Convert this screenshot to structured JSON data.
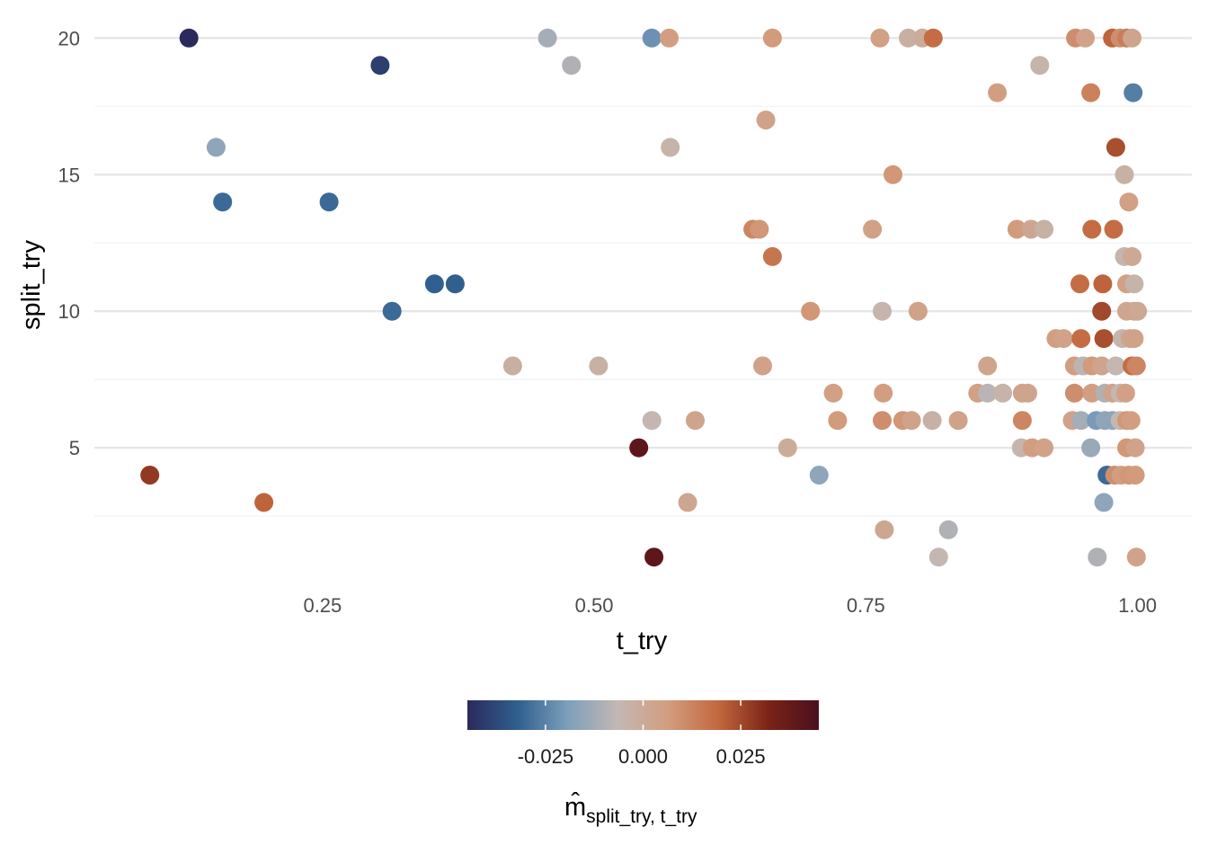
{
  "chart_data": {
    "type": "scatter",
    "xlabel": "t_try",
    "ylabel": "split_try",
    "xlim": [
      0.04,
      1.05
    ],
    "ylim": [
      0.1,
      20.9
    ],
    "x_ticks": [
      0.25,
      0.5,
      0.75,
      1.0
    ],
    "x_tick_labels": [
      "0.25",
      "0.50",
      "0.75",
      "1.00"
    ],
    "y_ticks": [
      5,
      10,
      15,
      20
    ],
    "y_tick_labels": [
      "5",
      "10",
      "15",
      "20"
    ],
    "grid": true,
    "legend": {
      "position": "bottom",
      "title": "m̂",
      "title_subscript": "split_try, t_try",
      "range": [
        -0.045,
        0.045
      ],
      "ticks": [
        -0.025,
        0.0,
        0.025
      ],
      "tick_labels": [
        "-0.025",
        "0.000",
        "0.025"
      ],
      "colors": [
        "#2b2a5c",
        "#2f5f8e",
        "#7d9fbb",
        "#c3b8b3",
        "#d39d7f",
        "#c2683e",
        "#7a2316",
        "#4a0f1f"
      ]
    },
    "points": [
      {
        "x": 0.127,
        "y": 20,
        "v": -0.045
      },
      {
        "x": 0.303,
        "y": 19,
        "v": -0.04
      },
      {
        "x": 0.457,
        "y": 20,
        "v": -0.012
      },
      {
        "x": 0.479,
        "y": 19,
        "v": -0.01
      },
      {
        "x": 0.553,
        "y": 20,
        "v": -0.022
      },
      {
        "x": 0.569,
        "y": 20,
        "v": 0.006
      },
      {
        "x": 0.664,
        "y": 20,
        "v": 0.007
      },
      {
        "x": 0.763,
        "y": 20,
        "v": 0.005
      },
      {
        "x": 0.789,
        "y": 20,
        "v": -0.002
      },
      {
        "x": 0.802,
        "y": 20,
        "v": 0.0
      },
      {
        "x": 0.812,
        "y": 20,
        "v": 0.018
      },
      {
        "x": 0.943,
        "y": 20,
        "v": 0.01
      },
      {
        "x": 0.952,
        "y": 20,
        "v": 0.004
      },
      {
        "x": 0.977,
        "y": 20,
        "v": 0.02
      },
      {
        "x": 0.984,
        "y": 20,
        "v": 0.01
      },
      {
        "x": 0.99,
        "y": 20,
        "v": 0.014
      },
      {
        "x": 0.995,
        "y": 20,
        "v": 0.003
      },
      {
        "x": 0.91,
        "y": 19,
        "v": -0.004
      },
      {
        "x": 0.871,
        "y": 18,
        "v": 0.006
      },
      {
        "x": 0.957,
        "y": 18,
        "v": 0.013
      },
      {
        "x": 0.996,
        "y": 18,
        "v": -0.026
      },
      {
        "x": 0.658,
        "y": 17,
        "v": 0.004
      },
      {
        "x": 0.152,
        "y": 16,
        "v": -0.016
      },
      {
        "x": 0.57,
        "y": 16,
        "v": -0.004
      },
      {
        "x": 0.98,
        "y": 16,
        "v": 0.024
      },
      {
        "x": 0.775,
        "y": 15,
        "v": 0.008
      },
      {
        "x": 0.988,
        "y": 15,
        "v": -0.003
      },
      {
        "x": 0.158,
        "y": 14,
        "v": -0.03
      },
      {
        "x": 0.256,
        "y": 14,
        "v": -0.03
      },
      {
        "x": 0.992,
        "y": 14,
        "v": 0.005
      },
      {
        "x": 0.646,
        "y": 13,
        "v": 0.012
      },
      {
        "x": 0.652,
        "y": 13,
        "v": 0.008
      },
      {
        "x": 0.756,
        "y": 13,
        "v": 0.005
      },
      {
        "x": 0.889,
        "y": 13,
        "v": 0.007
      },
      {
        "x": 0.902,
        "y": 13,
        "v": 0.002
      },
      {
        "x": 0.914,
        "y": 13,
        "v": -0.003
      },
      {
        "x": 0.958,
        "y": 13,
        "v": 0.018
      },
      {
        "x": 0.978,
        "y": 13,
        "v": 0.018
      },
      {
        "x": 0.664,
        "y": 12,
        "v": 0.016
      },
      {
        "x": 0.988,
        "y": 12,
        "v": -0.005
      },
      {
        "x": 0.995,
        "y": 12,
        "v": 0.001
      },
      {
        "x": 0.353,
        "y": 11,
        "v": -0.032
      },
      {
        "x": 0.372,
        "y": 11,
        "v": -0.032
      },
      {
        "x": 0.947,
        "y": 11,
        "v": 0.018
      },
      {
        "x": 0.968,
        "y": 11,
        "v": 0.02
      },
      {
        "x": 0.99,
        "y": 11,
        "v": 0.005
      },
      {
        "x": 0.997,
        "y": 11,
        "v": -0.004
      },
      {
        "x": 0.314,
        "y": 10,
        "v": -0.03
      },
      {
        "x": 0.699,
        "y": 10,
        "v": 0.008
      },
      {
        "x": 0.765,
        "y": 10,
        "v": -0.005
      },
      {
        "x": 0.798,
        "y": 10,
        "v": 0.004
      },
      {
        "x": 0.967,
        "y": 10,
        "v": 0.025
      },
      {
        "x": 0.99,
        "y": 10,
        "v": 0.002
      },
      {
        "x": 0.997,
        "y": 10,
        "v": 0.003
      },
      {
        "x": 1.0,
        "y": 10,
        "v": 0.001
      },
      {
        "x": 0.925,
        "y": 9,
        "v": 0.006
      },
      {
        "x": 0.932,
        "y": 9,
        "v": 0.004
      },
      {
        "x": 0.948,
        "y": 9,
        "v": 0.018
      },
      {
        "x": 0.969,
        "y": 9,
        "v": 0.024
      },
      {
        "x": 0.986,
        "y": 9,
        "v": -0.005
      },
      {
        "x": 0.993,
        "y": 9,
        "v": 0.002
      },
      {
        "x": 0.997,
        "y": 9,
        "v": 0.004
      },
      {
        "x": 0.425,
        "y": 8,
        "v": -0.002
      },
      {
        "x": 0.504,
        "y": 8,
        "v": -0.003
      },
      {
        "x": 0.655,
        "y": 8,
        "v": 0.004
      },
      {
        "x": 0.862,
        "y": 8,
        "v": 0.003
      },
      {
        "x": 0.942,
        "y": 8,
        "v": 0.006
      },
      {
        "x": 0.95,
        "y": 8,
        "v": -0.008
      },
      {
        "x": 0.958,
        "y": 8,
        "v": 0.007
      },
      {
        "x": 0.967,
        "y": 8,
        "v": 0.003
      },
      {
        "x": 0.98,
        "y": 8,
        "v": -0.006
      },
      {
        "x": 0.995,
        "y": 8,
        "v": 0.018
      },
      {
        "x": 0.999,
        "y": 8,
        "v": 0.012
      },
      {
        "x": 0.72,
        "y": 7,
        "v": 0.005
      },
      {
        "x": 0.766,
        "y": 7,
        "v": 0.006
      },
      {
        "x": 0.853,
        "y": 7,
        "v": 0.005
      },
      {
        "x": 0.862,
        "y": 7,
        "v": -0.008
      },
      {
        "x": 0.876,
        "y": 7,
        "v": -0.004
      },
      {
        "x": 0.894,
        "y": 7,
        "v": 0.004
      },
      {
        "x": 0.899,
        "y": 7,
        "v": 0.003
      },
      {
        "x": 0.942,
        "y": 7,
        "v": 0.01
      },
      {
        "x": 0.958,
        "y": 7,
        "v": 0.006
      },
      {
        "x": 0.97,
        "y": 7,
        "v": -0.01
      },
      {
        "x": 0.977,
        "y": 7,
        "v": 0.004
      },
      {
        "x": 0.984,
        "y": 7,
        "v": -0.006
      },
      {
        "x": 0.989,
        "y": 7,
        "v": 0.005
      },
      {
        "x": 0.553,
        "y": 6,
        "v": -0.006
      },
      {
        "x": 0.593,
        "y": 6,
        "v": 0.003
      },
      {
        "x": 0.724,
        "y": 6,
        "v": 0.007
      },
      {
        "x": 0.765,
        "y": 6,
        "v": 0.01
      },
      {
        "x": 0.784,
        "y": 6,
        "v": 0.008
      },
      {
        "x": 0.792,
        "y": 6,
        "v": 0.004
      },
      {
        "x": 0.811,
        "y": 6,
        "v": -0.003
      },
      {
        "x": 0.835,
        "y": 6,
        "v": 0.004
      },
      {
        "x": 0.894,
        "y": 6,
        "v": 0.012
      },
      {
        "x": 0.94,
        "y": 6,
        "v": 0.004
      },
      {
        "x": 0.948,
        "y": 6,
        "v": -0.012
      },
      {
        "x": 0.962,
        "y": 6,
        "v": -0.02
      },
      {
        "x": 0.97,
        "y": 6,
        "v": -0.016
      },
      {
        "x": 0.977,
        "y": 6,
        "v": -0.016
      },
      {
        "x": 0.984,
        "y": 6,
        "v": -0.006
      },
      {
        "x": 0.99,
        "y": 6,
        "v": 0.008
      },
      {
        "x": 0.994,
        "y": 6,
        "v": 0.006
      },
      {
        "x": 0.541,
        "y": 5,
        "v": 0.04
      },
      {
        "x": 0.678,
        "y": 5,
        "v": 0.0
      },
      {
        "x": 0.893,
        "y": 5,
        "v": -0.005
      },
      {
        "x": 0.903,
        "y": 5,
        "v": 0.006
      },
      {
        "x": 0.914,
        "y": 5,
        "v": 0.004
      },
      {
        "x": 0.957,
        "y": 5,
        "v": -0.014
      },
      {
        "x": 0.99,
        "y": 5,
        "v": 0.008
      },
      {
        "x": 0.998,
        "y": 5,
        "v": 0.004
      },
      {
        "x": 0.091,
        "y": 4,
        "v": 0.028
      },
      {
        "x": 0.707,
        "y": 4,
        "v": -0.016
      },
      {
        "x": 0.972,
        "y": 4,
        "v": -0.03
      },
      {
        "x": 0.979,
        "y": 4,
        "v": 0.01
      },
      {
        "x": 0.985,
        "y": 4,
        "v": 0.006
      },
      {
        "x": 0.992,
        "y": 4,
        "v": 0.008
      },
      {
        "x": 0.998,
        "y": 4,
        "v": 0.007
      },
      {
        "x": 0.196,
        "y": 3,
        "v": 0.02
      },
      {
        "x": 0.586,
        "y": 3,
        "v": 0.002
      },
      {
        "x": 0.969,
        "y": 3,
        "v": -0.016
      },
      {
        "x": 0.767,
        "y": 2,
        "v": 0.002
      },
      {
        "x": 0.826,
        "y": 2,
        "v": -0.01
      },
      {
        "x": 0.555,
        "y": 1,
        "v": 0.04
      },
      {
        "x": 0.817,
        "y": 1,
        "v": -0.006
      },
      {
        "x": 0.963,
        "y": 1,
        "v": -0.01
      },
      {
        "x": 0.999,
        "y": 1,
        "v": 0.004
      }
    ]
  }
}
